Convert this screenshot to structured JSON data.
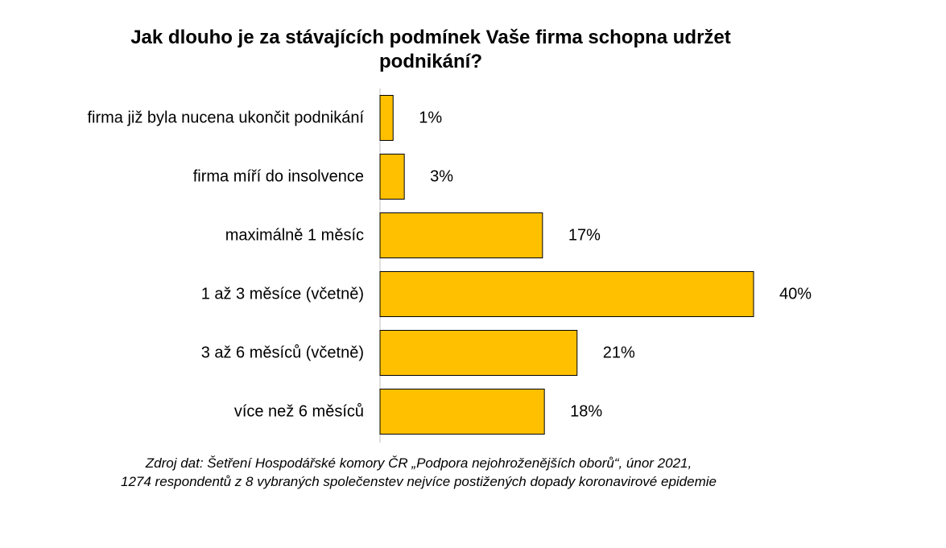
{
  "chart_data": {
    "type": "bar",
    "orientation": "horizontal",
    "title_lines": [
      "Jak dlouho je za stávajících podmínek Vaše firma schopna udržet",
      "podnikání?"
    ],
    "categories": [
      "firma již byla nucena ukončit podnikání",
      "firma míří do insolvence",
      "maximálně 1 měsíc",
      "1 až 3 měsíce (včetně)",
      "3 až 6 měsíců (včetně)",
      "více než 6 měsíců"
    ],
    "values": [
      1.4,
      2.6,
      17.4,
      40,
      21.1,
      17.6
    ],
    "value_labels": [
      "1%",
      "3%",
      "17%",
      "40%",
      "21%",
      "18%"
    ],
    "value_unit": "%",
    "xlim": [
      0,
      40
    ],
    "grid": false,
    "legend": "none",
    "bar_color": "#FFC000",
    "bar_border_color": "#000000"
  },
  "source_lines": [
    "Zdroj dat: Šetření Hospodářské komory ČR „Podpora nejohroženějších oborů“, únor 2021,",
    "1274 respondentů z 8 vybraných společenstev nejvíce postižených dopady koronavirové epidemie"
  ]
}
